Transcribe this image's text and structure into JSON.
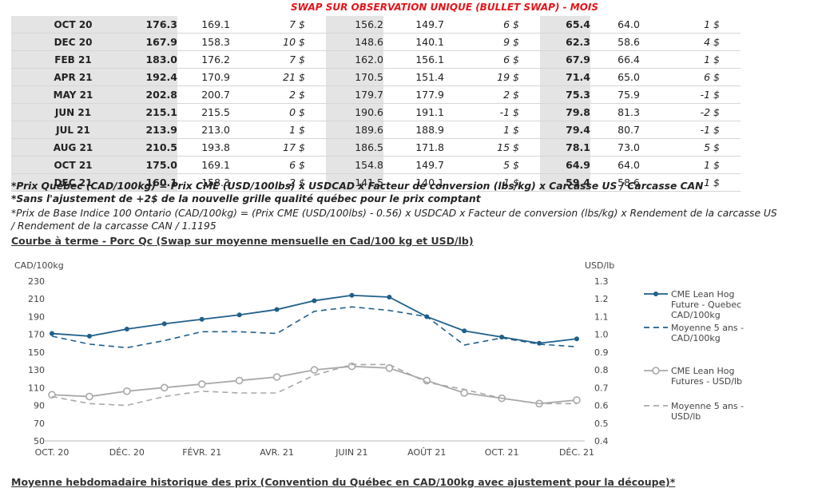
{
  "banner": "SWAP SUR OBSERVATION UNIQUE (BULLET SWAP) - MOIS",
  "table": {
    "rows": [
      {
        "month": "OCT 20",
        "v1": "176.3",
        "v2": "169.1",
        "d1": "7 $",
        "v4": "156.2",
        "v5": "149.7",
        "d2": "6 $",
        "v7": "65.4",
        "v8": "64.0",
        "d3": "1 $"
      },
      {
        "month": "DEC 20",
        "v1": "167.9",
        "v2": "158.3",
        "d1": "10 $",
        "v4": "148.6",
        "v5": "140.1",
        "d2": "9 $",
        "v7": "62.3",
        "v8": "58.6",
        "d3": "4 $"
      },
      {
        "month": "FEB 21",
        "v1": "183.0",
        "v2": "176.2",
        "d1": "7 $",
        "v4": "162.0",
        "v5": "156.1",
        "d2": "6 $",
        "v7": "67.9",
        "v8": "66.4",
        "d3": "1 $"
      },
      {
        "month": "APR 21",
        "v1": "192.4",
        "v2": "170.9",
        "d1": "21 $",
        "v4": "170.5",
        "v5": "151.4",
        "d2": "19 $",
        "v7": "71.4",
        "v8": "65.0",
        "d3": "6 $"
      },
      {
        "month": "MAY 21",
        "v1": "202.8",
        "v2": "200.7",
        "d1": "2 $",
        "v4": "179.7",
        "v5": "177.9",
        "d2": "2 $",
        "v7": "75.3",
        "v8": "75.9",
        "d3": "-1 $"
      },
      {
        "month": "JUN 21",
        "v1": "215.1",
        "v2": "215.5",
        "d1": "0 $",
        "v4": "190.6",
        "v5": "191.1",
        "d2": "-1 $",
        "v7": "79.8",
        "v8": "81.3",
        "d3": "-2 $"
      },
      {
        "month": "JUL 21",
        "v1": "213.9",
        "v2": "213.0",
        "d1": "1 $",
        "v4": "189.6",
        "v5": "188.9",
        "d2": "1 $",
        "v7": "79.4",
        "v8": "80.7",
        "d3": "-1 $"
      },
      {
        "month": "AUG 21",
        "v1": "210.5",
        "v2": "193.8",
        "d1": "17 $",
        "v4": "186.5",
        "v5": "171.8",
        "d2": "15 $",
        "v7": "78.1",
        "v8": "73.0",
        "d3": "5 $"
      },
      {
        "month": "OCT 21",
        "v1": "175.0",
        "v2": "169.1",
        "d1": "6 $",
        "v4": "154.8",
        "v5": "149.7",
        "d2": "5 $",
        "v7": "64.9",
        "v8": "64.0",
        "d3": "1 $"
      },
      {
        "month": "DEC 21",
        "v1": "160.1",
        "v2": "158.3",
        "d1": "2 $",
        "v4": "141.5",
        "v5": "140.1",
        "d2": "1 $",
        "v7": "59.4",
        "v8": "58.6",
        "d3": "1 $"
      }
    ]
  },
  "notes": {
    "n1": "*Prix Québec (CAD/100kg) = Prix CME (USD/100lbs) x USDCAD x Facteur de conversion (lbs/kg) x Carcasse US / Carcasse CAN",
    "n2": "*Sans l'ajustement de +2$ de la nouvelle grille qualité québec pour le prix comptant",
    "n3": "*Prix de Base Indice 100 Ontario (CAD/100kg) = (Prix CME (USD/100lbs) - 0.56) x USDCAD x Facteur de conversion (lbs/kg) x Rendement de la carcasse US",
    "n4": "/ Rendement de la carcasse CAN / 1.1195"
  },
  "chart_title": "Courbe à terme - Porc Qc (Swap sur moyenne mensuelle en Cad/100 kg et USD/lb)",
  "bottom_title": "Moyenne hebdomadaire historique des prix (Convention du Québec en CAD/100kg avec ajustement pour la découpe)*",
  "colors": {
    "blue": "#1f5f8b",
    "gray": "#a8a8a8",
    "green": "#1d9e35",
    "red": "#c5161b",
    "banner": "#e3151a"
  },
  "chart_data": {
    "type": "line",
    "ylabel": "CAD/100kg",
    "y2label": "USD/lb",
    "ylim": [
      50,
      230
    ],
    "y2lim": [
      0.4,
      1.3
    ],
    "yticks": [
      "230",
      "210",
      "190",
      "170",
      "150",
      "130",
      "110",
      "90",
      "70",
      "50"
    ],
    "y2ticks": [
      "1.3",
      "1.2",
      "1.1",
      "1.0",
      "0.9",
      "0.8",
      "0.7",
      "0.6",
      "0.5",
      "0.4"
    ],
    "categories": [
      "OCT. 20",
      "DÉC. 20",
      "FÉVR. 21",
      "AVR. 21",
      "JUIN 21",
      "AOÛT 21",
      "OCT. 21",
      "DÉC. 21"
    ],
    "x": [
      0,
      1,
      2,
      3,
      4,
      5,
      6,
      7,
      8,
      9,
      10,
      11,
      12,
      13,
      14
    ],
    "series": [
      {
        "name": "CME Lean Hog Future - Quebec CAD/100kg",
        "axis": "left",
        "style": "solid-marker",
        "color": "#1f5f8b",
        "values": [
          171,
          168,
          176,
          182,
          187,
          192,
          198,
          208,
          214,
          212,
          190,
          174,
          167,
          160,
          165
        ]
      },
      {
        "name": "Moyenne 5 ans - CAD/100kg",
        "axis": "left",
        "style": "dashed",
        "color": "#1f5f8b",
        "values": [
          168,
          159,
          155,
          163,
          173,
          173,
          171,
          196,
          201,
          197,
          190,
          158,
          166,
          159,
          156
        ]
      },
      {
        "name": "CME Lean Hog Futures - USD/lb",
        "axis": "right",
        "style": "solid-marker",
        "color": "#a8a8a8",
        "values": [
          0.66,
          0.65,
          0.68,
          0.7,
          0.72,
          0.74,
          0.76,
          0.8,
          0.82,
          0.81,
          0.74,
          0.67,
          0.64,
          0.61,
          0.63
        ]
      },
      {
        "name": "Moyenne 5 ans - USD/lb",
        "axis": "right",
        "style": "dashed",
        "color": "#a8a8a8",
        "values": [
          0.65,
          0.61,
          0.6,
          0.65,
          0.68,
          0.67,
          0.67,
          0.77,
          0.83,
          0.83,
          0.73,
          0.69,
          0.64,
          0.61,
          0.61
        ]
      }
    ],
    "legend": [
      {
        "lines": [
          "CME Lean Hog",
          "Future - Quebec",
          "CAD/100kg"
        ]
      },
      {
        "lines": [
          "Moyenne 5 ans -",
          "CAD/100kg"
        ]
      },
      {
        "lines": [
          "CME Lean Hog",
          "Futures - USD/lb"
        ]
      },
      {
        "lines": [
          "Moyenne 5 ans -",
          "USD/lb"
        ]
      }
    ],
    "legend_position": "right"
  }
}
